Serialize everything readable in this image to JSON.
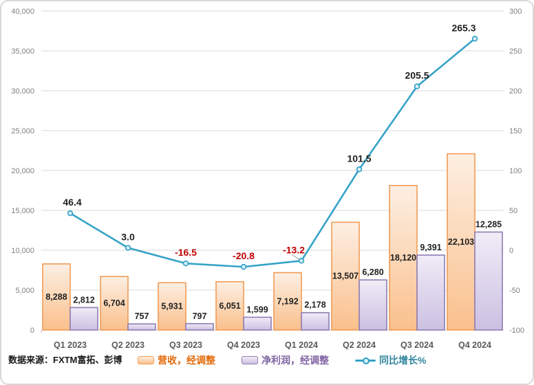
{
  "source_note": "数据来源：FXTM富拓、彭博",
  "colors": {
    "grid": "#D9D9D9",
    "baseline": "#C6C6C6",
    "axis_text": "#7F7F7F",
    "x_axis_text": "#595959",
    "bar_label": "#1F1F1F",
    "line_label_positive": "#1F1F1F",
    "line_label_negative": "#C00000",
    "leader_line": "#9B9B9B",
    "revenue_fill_top": "#FDEFE3",
    "revenue_fill_bottom": "#FAC08C",
    "revenue_border": "#F09B55",
    "profit_fill_top": "#F0ECF7",
    "profit_fill_bottom": "#CCC0E2",
    "profit_border": "#8D7DB2",
    "line": "#34A3C7",
    "marker_fill": "#D9EFF7",
    "marker_stroke": "#2E9EC4",
    "legend_revenue_text": "#E26B0A",
    "legend_profit_text": "#8064A2",
    "legend_growth_text": "#31859C"
  },
  "chart_data": {
    "type": "bar",
    "subtype": "combo-bar-line-dual-axis",
    "categories": [
      "Q1 2023",
      "Q2 2023",
      "Q3 2023",
      "Q4 2023",
      "Q1 2024",
      "Q2 2024",
      "Q3 2024",
      "Q4 2024"
    ],
    "series": [
      {
        "name": "营收，经调整",
        "type": "bar",
        "axis": "left",
        "values": [
          8288,
          6704,
          5931,
          6051,
          7192,
          13507,
          18120,
          22103
        ],
        "labels": [
          "8,288",
          "6,704",
          "5,931",
          "6,051",
          "7,192",
          "13,507",
          "18,120",
          "22,103"
        ]
      },
      {
        "name": "净利润，经调整",
        "type": "bar",
        "axis": "left",
        "values": [
          2812,
          757,
          797,
          1599,
          2178,
          6280,
          9391,
          12285
        ],
        "labels": [
          "2,812",
          "757",
          "797",
          "1,599",
          "2,178",
          "6,280",
          "9,391",
          "12,285"
        ]
      },
      {
        "name": "同比增长%",
        "type": "line",
        "axis": "right",
        "values": [
          46.4,
          3.0,
          -16.5,
          -20.8,
          -13.2,
          101.5,
          205.5,
          265.3
        ],
        "labels": [
          "46.4",
          "3.0",
          "-16.5",
          "-20.8",
          "-13.2",
          "101.5",
          "205.5",
          "265.3"
        ]
      }
    ],
    "left_axis": {
      "min": 0,
      "max": 40000,
      "step": 5000,
      "tick_labels": [
        "0",
        "5,000",
        "10,000",
        "15,000",
        "20,000",
        "25,000",
        "30,000",
        "35,000",
        "40,000"
      ]
    },
    "right_axis": {
      "min": -100,
      "max": 300,
      "step": 50,
      "tick_labels": [
        "-100",
        "-50",
        "0",
        "50",
        "100",
        "150",
        "200",
        "250",
        "300"
      ]
    },
    "grid": true,
    "legend_position": "bottom",
    "title": ""
  }
}
